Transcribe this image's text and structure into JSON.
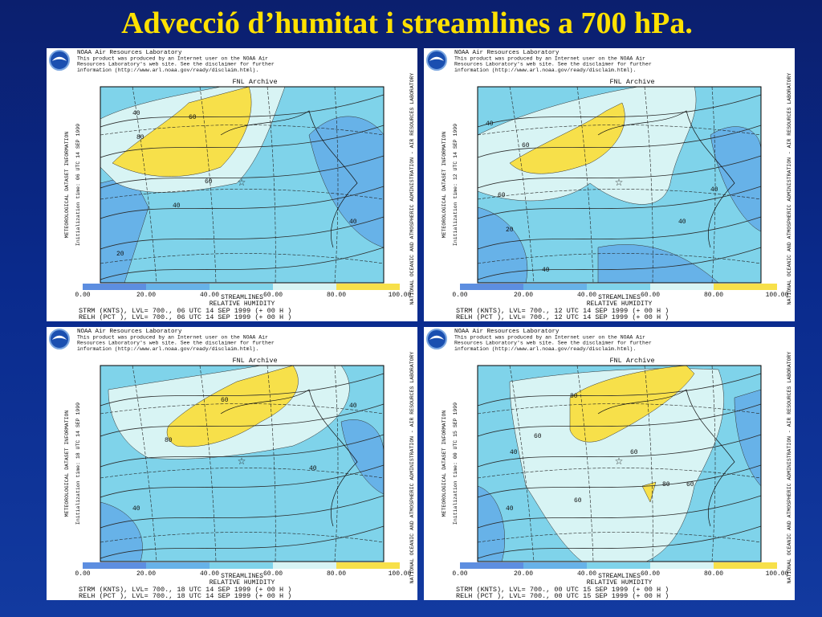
{
  "title": "Advecció d’humitat i streamlines a 700 hPa.",
  "panels": [
    {
      "header": [
        "NOAA Air Resources Laboratory",
        "This product was produced by an Internet user on the NOAA Air",
        "Resources Laboratory's web site.  See the disclaimer for further",
        "information (http://www.arl.noaa.gov/ready/disclaim.html)."
      ],
      "archive": "FNL Archive",
      "left_side": [
        "METEOROLOGICAL DATASET INFORMATION",
        "Initialization time: 06 UTC 14 SEP 1999"
      ],
      "right_side": "NATIONAL OCEANIC AND ATMOSPHERIC ADMINISTRATION - AIR RESOURCES LABORATORY",
      "colorbar": [
        "0.00",
        "20.00",
        "40.00",
        "60.00",
        "80.00",
        "100.00"
      ],
      "contour_labels": [
        "40",
        "80",
        "60",
        "60",
        "40",
        "40",
        "20"
      ],
      "footer": [
        "STREAMLINES",
        "RELATIVE HUMIDITY",
        "STRM (KNTS), LVL= 700., 06 UTC 14 SEP 1999 (+ 00 H )",
        "RELH (PCT ), LVL= 700., 06 UTC 14 SEP 1999 (+ 00 H )"
      ]
    },
    {
      "header": [
        "NOAA Air Resources Laboratory",
        "This product was produced by an Internet user on the NOAA Air",
        "Resources Laboratory's web site.  See the disclaimer for further",
        "information (http://www.arl.noaa.gov/ready/disclaim.html)."
      ],
      "archive": "FNL Archive",
      "left_side": [
        "METEOROLOGICAL DATASET INFORMATION",
        "Initialization time: 12 UTC 14 SEP 1999"
      ],
      "right_side": "NATIONAL OCEANIC AND ATMOSPHERIC ADMINISTRATION - AIR RESOURCES LABORATORY",
      "colorbar": [
        "0.00",
        "20.00",
        "40.00",
        "60.00",
        "80.00",
        "100.00"
      ],
      "contour_labels": [
        "40",
        "60",
        "60",
        "40",
        "40",
        "20",
        "40"
      ],
      "footer": [
        "STREAMLINES",
        "RELATIVE HUMIDITY",
        "STRM (KNTS), LVL= 700., 12 UTC 14 SEP 1999 (+ 00 H )",
        "RELH (PCT ), LVL= 700., 12 UTC 14 SEP 1999 (+ 00 H )"
      ]
    },
    {
      "header": [
        "NOAA Air Resources Laboratory",
        "This product was produced by an Internet user on the NOAA Air",
        "Resources Laboratory's web site.  See the disclaimer for further",
        "information (http://www.arl.noaa.gov/ready/disclaim.html)."
      ],
      "archive": "FNL Archive",
      "left_side": [
        "METEOROLOGICAL DATASET INFORMATION",
        "Initialization time: 18 UTC 14 SEP 1999"
      ],
      "right_side": "NATIONAL OCEANIC AND ATMOSPHERIC ADMINISTRATION - AIR RESOURCES LABORATORY",
      "colorbar": [
        "0.00",
        "20.00",
        "40.00",
        "60.00",
        "80.00",
        "100.00"
      ],
      "contour_labels": [
        "80",
        "60",
        "40",
        "40",
        "40"
      ],
      "footer": [
        "STREAMLINES",
        "RELATIVE HUMIDITY",
        "STRM (KNTS), LVL= 700., 18 UTC 14 SEP 1999 (+ 00 H )",
        "RELH (PCT ), LVL= 700., 18 UTC 14 SEP 1999 (+ 00 H )"
      ]
    },
    {
      "header": [
        "NOAA Air Resources Laboratory",
        "This product was produced by an Internet user on the NOAA Air",
        "Resources Laboratory's web site.  See the disclaimer for further",
        "information (http://www.arl.noaa.gov/ready/disclaim.html)."
      ],
      "archive": "FNL Archive",
      "left_side": [
        "METEOROLOGICAL DATASET INFORMATION",
        "Initialization time: 00 UTC 15 SEP 1999"
      ],
      "right_side": "NATIONAL OCEANIC AND ATMOSPHERIC ADMINISTRATION - AIR RESOURCES LABORATORY",
      "colorbar": [
        "0.00",
        "20.00",
        "40.00",
        "60.00",
        "80.00",
        "100.00"
      ],
      "contour_labels": [
        "80",
        "40",
        "60",
        "60",
        "60",
        "80",
        "60",
        "40"
      ],
      "footer": [
        "STREAMLINES",
        "RELATIVE HUMIDITY",
        "STRM (KNTS), LVL= 700., 00 UTC 15 SEP 1999 (+ 00 H )",
        "RELH (PCT ), LVL= 700., 00 UTC 15 SEP 1999 (+ 00 H )"
      ]
    }
  ]
}
